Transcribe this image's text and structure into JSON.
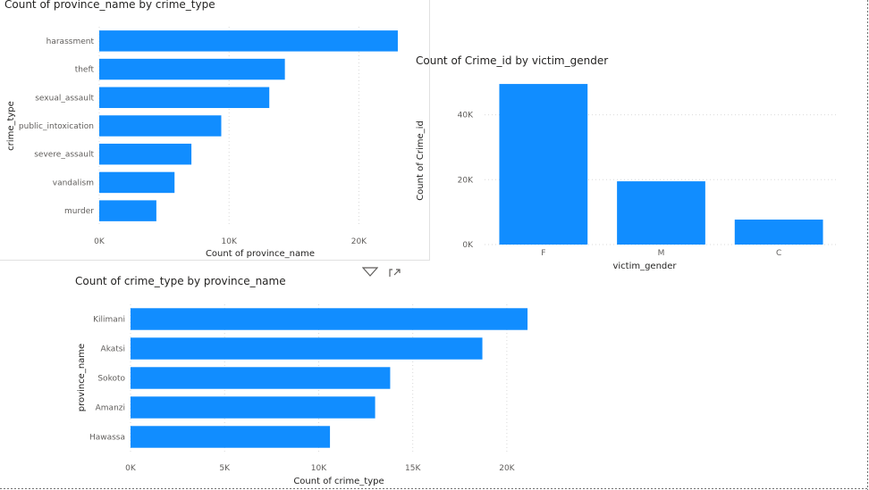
{
  "theme": {
    "bar_color": "#118DFF",
    "grid_color": "#d9d9d9",
    "text_color": "#605E5C",
    "title_color": "#252423"
  },
  "visual_header": {
    "filter_icon": "filter-icon",
    "focus_icon": "focus-mode-icon"
  },
  "chart_data": [
    {
      "type": "bar",
      "orientation": "horizontal",
      "title": "Count of province_name by crime_type",
      "xlabel": "Count of province_name",
      "ylabel": "crime_type",
      "categories": [
        "harassment",
        "theft",
        "sexual_assault",
        "public_intoxication",
        "severe_assault",
        "vandalism",
        "murder"
      ],
      "values": [
        23000,
        14300,
        13100,
        9400,
        7100,
        5800,
        4400
      ],
      "xlim": [
        0,
        25000
      ],
      "ticks": [
        0,
        10000,
        20000
      ],
      "tick_labels": [
        "0K",
        "10K",
        "20K"
      ],
      "grid": true
    },
    {
      "type": "bar",
      "orientation": "vertical",
      "title": "Count of Crime_id by victim_gender",
      "xlabel": "victim_gender",
      "ylabel": "Count of Crime_id",
      "categories": [
        "F",
        "M",
        "C"
      ],
      "values": [
        49500,
        19500,
        7700
      ],
      "ylim": [
        0,
        52000
      ],
      "ticks": [
        0,
        20000,
        40000
      ],
      "tick_labels": [
        "0K",
        "20K",
        "40K"
      ],
      "grid": true
    },
    {
      "type": "bar",
      "orientation": "horizontal",
      "title": "Count of crime_type by province_name",
      "xlabel": "Count of crime_type",
      "ylabel": "province_name",
      "categories": [
        "Kilimani",
        "Akatsi",
        "Sokoto",
        "Amanzi",
        "Hawassa"
      ],
      "values": [
        21100,
        18700,
        13800,
        13000,
        10600
      ],
      "xlim": [
        0,
        22000
      ],
      "ticks": [
        0,
        5000,
        10000,
        15000,
        20000
      ],
      "tick_labels": [
        "0K",
        "5K",
        "10K",
        "15K",
        "20K"
      ],
      "grid": true
    }
  ]
}
